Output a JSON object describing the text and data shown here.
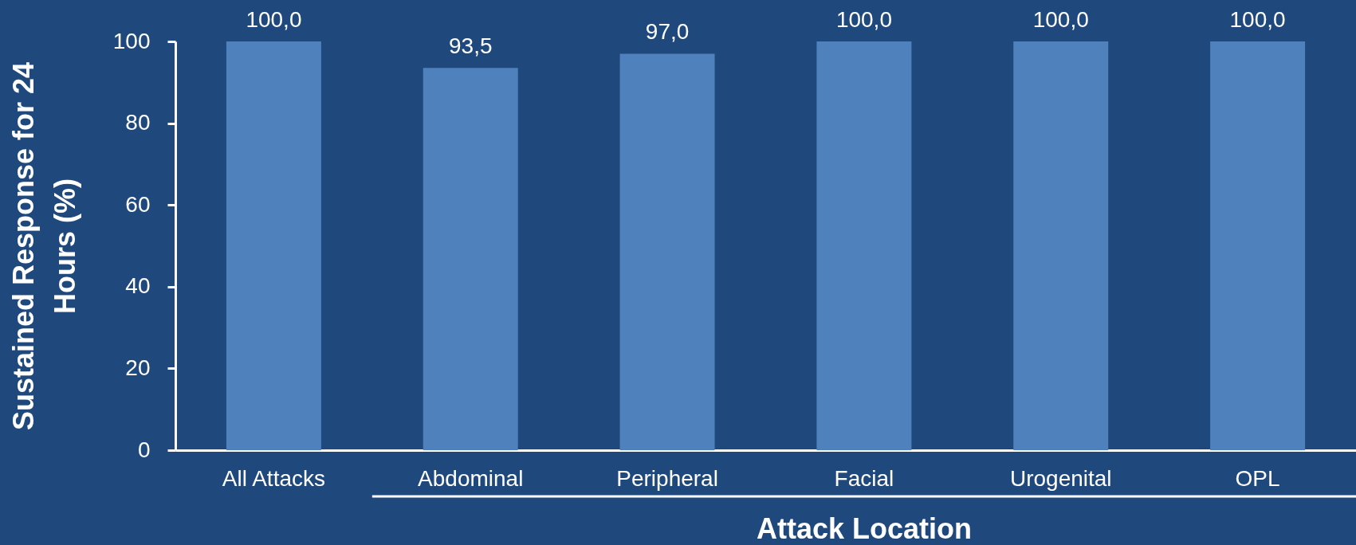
{
  "chart_data": {
    "type": "bar",
    "xlabel": "Attack Location",
    "ylabel": "Sustained Response for 24 Hours (%)",
    "categories": [
      "All Attacks",
      "Abdominal",
      "Peripheral",
      "Facial",
      "Urogenital",
      "OPL"
    ],
    "values": [
      100,
      93.5,
      97,
      100,
      100,
      100
    ],
    "value_labels": [
      "100,0",
      "93,5",
      "97,0",
      "100,0",
      "100,0",
      "100,0"
    ],
    "color": "#4f81bd",
    "ylim": [
      0,
      100
    ],
    "yticks": [
      0,
      20,
      40,
      60,
      80,
      100
    ]
  }
}
